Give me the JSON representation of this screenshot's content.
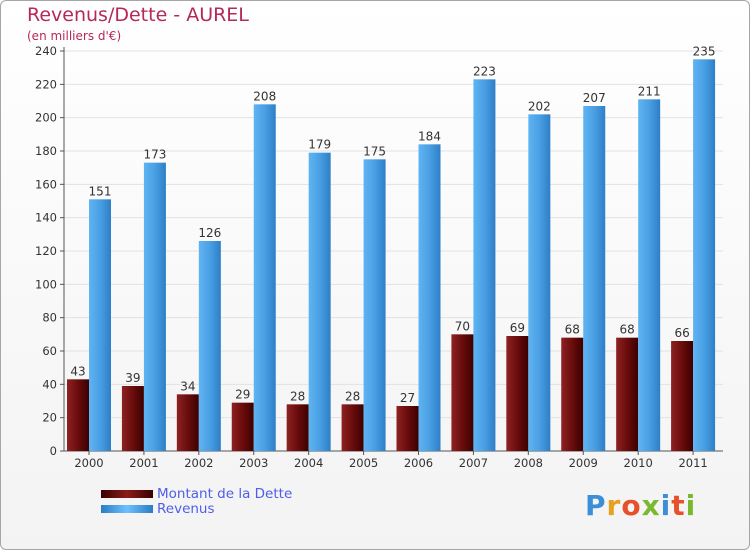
{
  "title": "Revenus/Dette - AUREL",
  "subtitle": "(en milliers d'€)",
  "legend": [
    {
      "label": "Montant de la Dette",
      "color": "#6a0a0a"
    },
    {
      "label": "Revenus",
      "color": "#4aa3e8"
    }
  ],
  "logo": {
    "text": "Proxiti",
    "colors": [
      "#3c8fd6",
      "#e8a020",
      "#e8502a",
      "#7ab830",
      "#3c8fd6",
      "#e8502a",
      "#7ab830"
    ]
  },
  "colors": {
    "title": "#b5285b",
    "dette": "#7a1212",
    "revenus": "#3f9be6",
    "label": "#333333"
  },
  "chart_data": {
    "type": "bar",
    "title": "Revenus/Dette - AUREL",
    "subtitle": "(en milliers d'€)",
    "categories": [
      "2000",
      "2001",
      "2002",
      "2003",
      "2004",
      "2005",
      "2006",
      "2007",
      "2008",
      "2009",
      "2010",
      "2011"
    ],
    "series": [
      {
        "name": "Montant de la Dette",
        "values": [
          43,
          39,
          34,
          29,
          28,
          28,
          27,
          70,
          69,
          68,
          68,
          66
        ]
      },
      {
        "name": "Revenus",
        "values": [
          151,
          173,
          126,
          208,
          179,
          175,
          184,
          223,
          202,
          207,
          211,
          235
        ]
      }
    ],
    "ylim": [
      0,
      240
    ],
    "yticks": [
      0,
      20,
      40,
      60,
      80,
      100,
      120,
      140,
      160,
      180,
      200,
      220,
      240
    ],
    "grid": true,
    "data_labels": true,
    "legend_position": "bottom-left"
  }
}
